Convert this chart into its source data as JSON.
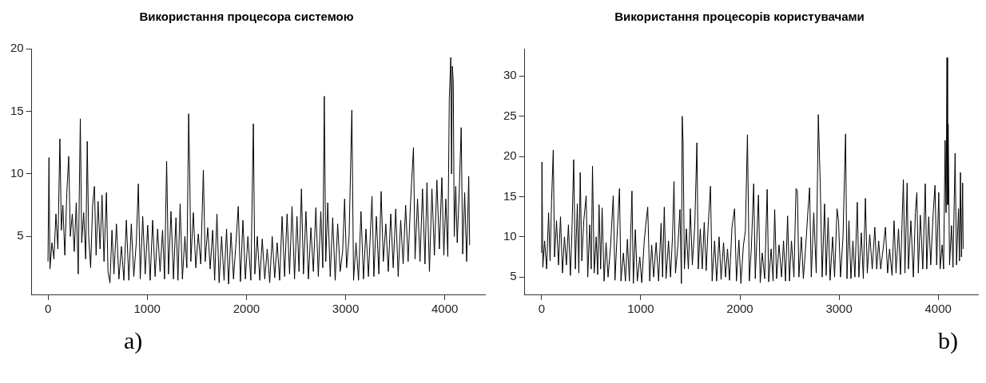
{
  "chart_data": [
    {
      "type": "line",
      "title": "Використання процесора системою",
      "color": "#000000",
      "marker": "none",
      "line_style": "solid",
      "xlim": [
        -164,
        4405
      ],
      "xticks": [
        0,
        1000,
        2000,
        3000,
        4000
      ],
      "ylim": [
        0.37,
        20
      ],
      "yticks": [
        5,
        10,
        15,
        20
      ],
      "annotations": [
        "a)"
      ],
      "x": [
        0,
        10,
        20,
        40,
        60,
        80,
        100,
        120,
        135,
        150,
        170,
        190,
        209,
        225,
        245,
        265,
        285,
        305,
        326,
        340,
        360,
        380,
        396,
        410,
        430,
        450,
        468,
        485,
        505,
        525,
        545,
        565,
        589,
        605,
        625,
        645,
        665,
        690,
        715,
        740,
        765,
        790,
        815,
        840,
        865,
        890,
        911,
        930,
        955,
        980,
        1005,
        1030,
        1055,
        1080,
        1105,
        1130,
        1155,
        1175,
        1196,
        1215,
        1240,
        1265,
        1290,
        1310,
        1332,
        1355,
        1380,
        1400,
        1418,
        1428,
        1440,
        1465,
        1490,
        1515,
        1540,
        1566,
        1585,
        1610,
        1635,
        1660,
        1680,
        1703,
        1725,
        1750,
        1775,
        1800,
        1820,
        1845,
        1870,
        1895,
        1918,
        1940,
        1965,
        1990,
        2015,
        2045,
        2070,
        2085,
        2110,
        2135,
        2160,
        2185,
        2210,
        2235,
        2260,
        2285,
        2310,
        2335,
        2360,
        2385,
        2410,
        2435,
        2460,
        2485,
        2510,
        2530,
        2555,
        2575,
        2600,
        2625,
        2650,
        2675,
        2700,
        2725,
        2750,
        2770,
        2785,
        2800,
        2820,
        2845,
        2870,
        2895,
        2920,
        2945,
        2970,
        2990,
        3010,
        3035,
        3063,
        3080,
        3105,
        3130,
        3155,
        3180,
        3205,
        3230,
        3266,
        3285,
        3310,
        3335,
        3358,
        3380,
        3405,
        3430,
        3455,
        3480,
        3505,
        3530,
        3555,
        3580,
        3605,
        3630,
        3655,
        3684,
        3700,
        3725,
        3750,
        3775,
        3800,
        3820,
        3845,
        3870,
        3895,
        3920,
        3945,
        3970,
        3990,
        4010,
        4030,
        4045,
        4060,
        4068,
        4076,
        4085,
        4095,
        4110,
        4125,
        4145,
        4165,
        4180,
        4200,
        4220,
        4241,
        4250
      ],
      "values": [
        3.0,
        11.3,
        2.4,
        4.5,
        3.2,
        6.8,
        4.0,
        12.8,
        5.5,
        7.5,
        3.5,
        8.5,
        11.4,
        5.0,
        6.8,
        3.8,
        7.7,
        2.0,
        14.4,
        4.5,
        6.9,
        3.2,
        12.6,
        5.0,
        2.5,
        7.5,
        9.0,
        3.5,
        7.8,
        4.0,
        8.3,
        3.0,
        8.5,
        2.2,
        1.3,
        5.5,
        2.0,
        6.0,
        1.6,
        4.2,
        1.5,
        6.3,
        1.5,
        6.0,
        1.8,
        4.5,
        9.2,
        1.6,
        6.6,
        2.0,
        5.9,
        1.5,
        6.3,
        1.8,
        5.6,
        2.2,
        5.5,
        1.6,
        11.0,
        2.0,
        7.0,
        1.6,
        6.5,
        1.5,
        7.6,
        1.6,
        5.0,
        2.5,
        14.8,
        10.5,
        3.0,
        6.9,
        2.5,
        5.2,
        2.8,
        10.3,
        3.0,
        5.7,
        2.4,
        5.5,
        1.5,
        6.8,
        1.3,
        5.0,
        1.5,
        5.6,
        1.2,
        5.3,
        1.6,
        4.5,
        7.4,
        1.4,
        6.3,
        1.6,
        5.0,
        1.5,
        14.0,
        2.0,
        5.0,
        1.5,
        4.8,
        1.6,
        4.0,
        1.3,
        5.0,
        1.7,
        4.5,
        1.5,
        6.6,
        1.8,
        6.8,
        2.0,
        7.4,
        1.6,
        6.6,
        2.2,
        8.8,
        2.0,
        7.0,
        1.6,
        5.7,
        2.2,
        7.3,
        1.8,
        7.0,
        2.5,
        16.2,
        3.0,
        7.7,
        1.8,
        6.5,
        1.5,
        6.0,
        2.2,
        3.8,
        8.0,
        2.5,
        5.0,
        15.1,
        1.5,
        4.5,
        1.5,
        7.0,
        1.6,
        5.6,
        1.8,
        8.2,
        1.8,
        6.6,
        2.0,
        8.6,
        3.0,
        6.0,
        2.2,
        6.8,
        2.5,
        7.2,
        1.8,
        6.3,
        2.8,
        7.5,
        3.0,
        7.8,
        12.1,
        3.2,
        8.0,
        3.0,
        8.8,
        2.8,
        9.3,
        2.2,
        8.8,
        3.5,
        9.5,
        4.0,
        9.7,
        3.5,
        8.0,
        3.4,
        16.0,
        19.3,
        10.0,
        18.6,
        17.3,
        5.0,
        9.0,
        4.5,
        8.5,
        13.7,
        3.6,
        8.5,
        3.0,
        9.8,
        4.3
      ]
    },
    {
      "type": "line",
      "title": "Використання процесорів користувачами",
      "color": "#000000",
      "marker": "none",
      "line_style": "solid",
      "xlim": [
        -171,
        4402
      ],
      "xticks": [
        0,
        1000,
        2000,
        3000,
        4000
      ],
      "ylim": [
        2.84,
        33.4
      ],
      "yticks": [
        5,
        10,
        15,
        20,
        25,
        30
      ],
      "annotations": [
        "b)"
      ],
      "x": [
        0,
        3,
        12,
        30,
        50,
        70,
        85,
        100,
        117,
        130,
        150,
        170,
        190,
        210,
        230,
        250,
        270,
        290,
        305,
        323,
        340,
        360,
        375,
        389,
        405,
        425,
        449,
        465,
        485,
        500,
        513,
        530,
        550,
        565,
        579,
        595,
        610,
        630,
        650,
        670,
        695,
        722,
        740,
        760,
        785,
        800,
        825,
        845,
        865,
        885,
        911,
        925,
        945,
        965,
        990,
        1010,
        1035,
        1050,
        1070,
        1090,
        1110,
        1130,
        1155,
        1180,
        1205,
        1220,
        1237,
        1255,
        1280,
        1300,
        1320,
        1335,
        1350,
        1375,
        1395,
        1410,
        1418,
        1427,
        1440,
        1460,
        1480,
        1500,
        1520,
        1545,
        1566,
        1580,
        1600,
        1620,
        1640,
        1660,
        1680,
        1703,
        1720,
        1745,
        1765,
        1790,
        1810,
        1835,
        1855,
        1875,
        1895,
        1920,
        1946,
        1965,
        1990,
        2010,
        2035,
        2055,
        2076,
        2095,
        2115,
        2139,
        2155,
        2170,
        2187,
        2205,
        2225,
        2250,
        2275,
        2290,
        2315,
        2335,
        2351,
        2370,
        2395,
        2420,
        2440,
        2460,
        2481,
        2500,
        2520,
        2545,
        2566,
        2580,
        2595,
        2620,
        2640,
        2665,
        2685,
        2703,
        2720,
        2745,
        2770,
        2791,
        2810,
        2830,
        2854,
        2870,
        2890,
        2910,
        2935,
        2955,
        2980,
        2995,
        3015,
        3040,
        3066,
        3080,
        3100,
        3120,
        3140,
        3160,
        3184,
        3200,
        3225,
        3245,
        3266,
        3285,
        3310,
        3335,
        3361,
        3380,
        3400,
        3420,
        3445,
        3468,
        3490,
        3510,
        3535,
        3555,
        3575,
        3600,
        3620,
        3649,
        3665,
        3687,
        3700,
        3725,
        3750,
        3770,
        3785,
        3800,
        3820,
        3845,
        3870,
        3885,
        3905,
        3925,
        3950,
        3968,
        3985,
        4006,
        4020,
        4040,
        4055,
        4070,
        4080,
        4089,
        4095,
        4101,
        4115,
        4135,
        4150,
        4171,
        4185,
        4205,
        4215,
        4225,
        4235,
        4247,
        4252
      ],
      "values": [
        8.0,
        19.3,
        6.2,
        9.5,
        6.0,
        13.0,
        7.0,
        14.5,
        20.8,
        7.5,
        12.0,
        6.5,
        12.5,
        5.5,
        10.0,
        6.5,
        11.5,
        5.2,
        10.5,
        19.6,
        6.0,
        14.1,
        5.5,
        18.0,
        7.0,
        12.0,
        15.1,
        5.0,
        11.5,
        6.0,
        18.8,
        5.5,
        10.0,
        5.3,
        14.0,
        6.0,
        13.6,
        4.5,
        9.3,
        5.0,
        8.8,
        15.1,
        4.6,
        9.9,
        16.0,
        4.5,
        8.0,
        4.5,
        9.7,
        4.5,
        15.7,
        4.2,
        10.9,
        4.5,
        7.5,
        4.3,
        9.5,
        11.5,
        13.7,
        4.5,
        9.0,
        5.0,
        9.3,
        4.5,
        11.7,
        5.0,
        13.7,
        4.8,
        9.5,
        5.0,
        10.0,
        16.9,
        5.5,
        9.0,
        13.4,
        4.2,
        25.0,
        21.7,
        6.0,
        11.0,
        6.0,
        13.5,
        6.5,
        11.5,
        21.7,
        6.0,
        11.0,
        6.0,
        11.8,
        5.8,
        11.4,
        16.3,
        4.5,
        9.5,
        4.5,
        10.0,
        4.7,
        9.3,
        5.0,
        8.5,
        4.6,
        11.2,
        13.5,
        4.5,
        9.6,
        4.2,
        8.9,
        10.7,
        22.7,
        4.5,
        8.5,
        16.6,
        4.8,
        9.5,
        15.2,
        4.3,
        8.0,
        4.8,
        15.9,
        4.4,
        8.5,
        4.5,
        13.4,
        4.8,
        9.0,
        5.0,
        9.5,
        4.5,
        12.6,
        4.5,
        9.5,
        5.0,
        16.0,
        15.7,
        5.0,
        10.0,
        4.8,
        9.0,
        13.0,
        16.1,
        5.0,
        13.0,
        5.5,
        25.2,
        16.7,
        5.0,
        14.1,
        5.2,
        12.4,
        4.6,
        10.0,
        5.0,
        13.5,
        12.0,
        5.0,
        10.0,
        22.8,
        4.8,
        12.0,
        4.8,
        9.5,
        5.0,
        14.3,
        5.0,
        10.5,
        4.8,
        14.8,
        5.5,
        10.3,
        6.0,
        11.2,
        6.0,
        9.5,
        6.0,
        8.5,
        11.2,
        5.5,
        8.5,
        5.2,
        12.0,
        5.5,
        11.0,
        5.3,
        17.1,
        5.5,
        16.7,
        6.0,
        12.0,
        5.0,
        13.0,
        15.5,
        5.5,
        12.7,
        6.0,
        16.6,
        6.0,
        12.5,
        6.5,
        13.0,
        16.4,
        6.5,
        15.5,
        6.0,
        9.0,
        6.0,
        22.0,
        13.0,
        32.3,
        14.0,
        24.0,
        6.5,
        11.4,
        6.2,
        20.4,
        6.5,
        13.5,
        7.0,
        18.0,
        7.5,
        16.7,
        8.5
      ]
    }
  ]
}
